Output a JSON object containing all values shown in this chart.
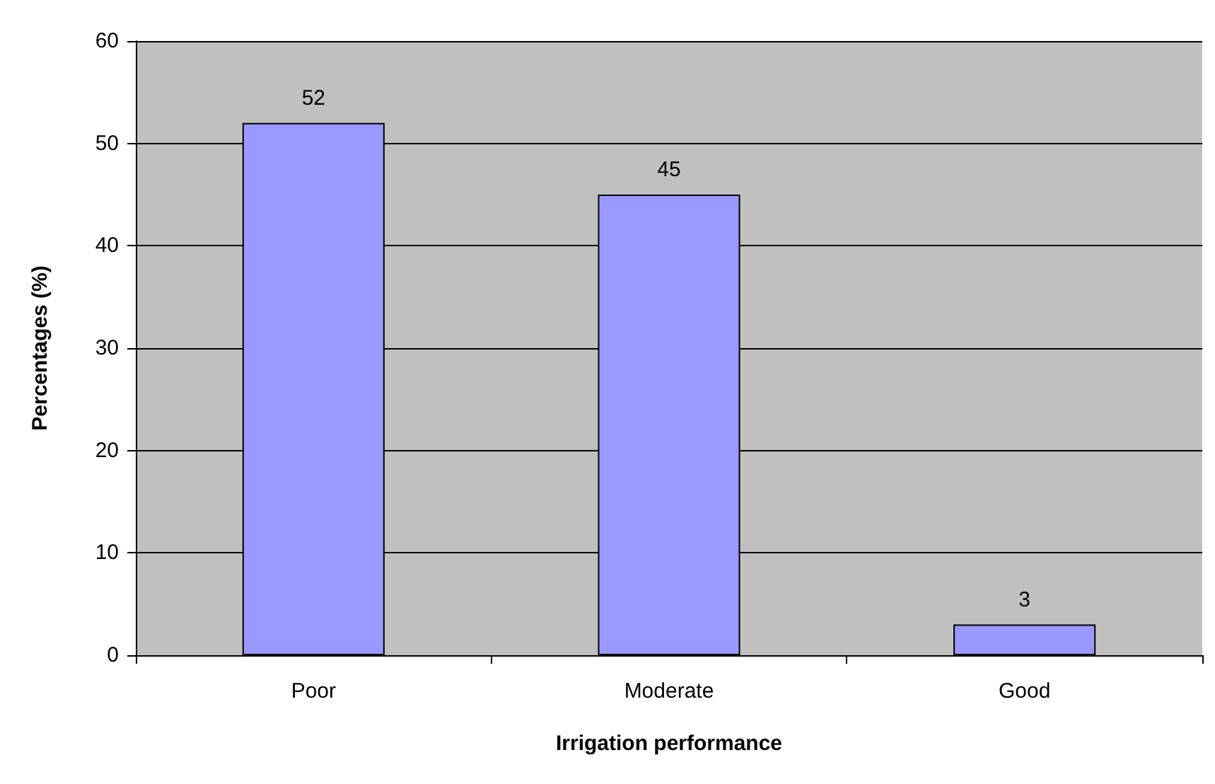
{
  "chart_data": {
    "type": "bar",
    "xlabel": "Irrigation performance",
    "ylabel": "Percentages (%)",
    "categories": [
      "Poor",
      "Moderate",
      "Good"
    ],
    "values": [
      52,
      45,
      3
    ],
    "color": "#9999ff",
    "ylim": [
      0,
      60
    ],
    "yticks": [
      0,
      10,
      20,
      30,
      40,
      50,
      60
    ],
    "grid": "y",
    "data_labels": true
  }
}
